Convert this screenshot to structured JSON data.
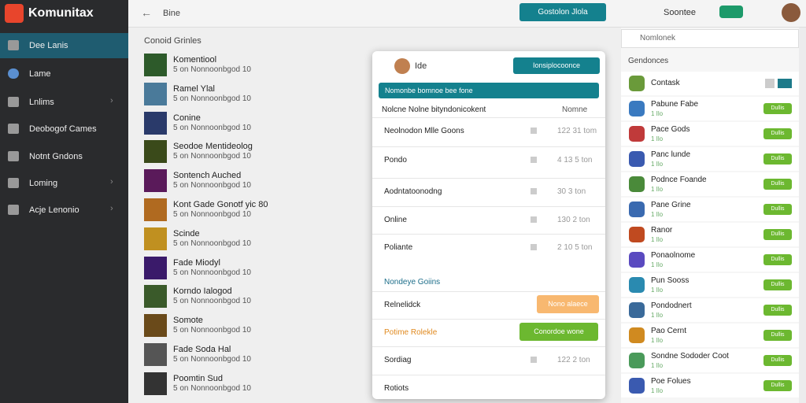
{
  "sidebar": {
    "logo": "Komunitax",
    "nav": [
      "Dee Lanis",
      "Lame",
      "Lnlims",
      "Deobogof Cames",
      "Notnt Gndons",
      "Loming",
      "Acje Lenonio"
    ]
  },
  "topbar": {
    "title": "Bine",
    "button": "Gostolon Jlola",
    "link": "Soontee"
  },
  "main": {
    "heading": "Conoid Grinles",
    "items": [
      {
        "title": "Komentiool",
        "subtitle": "5 on Nonnoonbgod 10"
      },
      {
        "title": "Ramel Ylal",
        "subtitle": "5 on Nonnoonbgod 10"
      },
      {
        "title": "Conine",
        "subtitle": "5 on Nonnoonbgod 10"
      },
      {
        "title": "Seodoe Mentideolog",
        "subtitle": "5 on Nonnoonbgod 10"
      },
      {
        "title": "Sontench Auched",
        "subtitle": "5 on Nonnoonbgod 10"
      },
      {
        "title": "Kont Gade Gonotf yic 80",
        "subtitle": "5 on Nonnoonbgod 10"
      },
      {
        "title": "Scinde",
        "subtitle": "5 on Nonnoonbgod 10"
      },
      {
        "title": "Fade Miodyl",
        "subtitle": "5 on Nonnoonbgod 10"
      },
      {
        "title": "Korndo Ialogod",
        "subtitle": "5 on Nonnoonbgod 10"
      },
      {
        "title": "Somote",
        "subtitle": "5 on Nonnoonbgod 10"
      },
      {
        "title": "Fade Soda Hal",
        "subtitle": "5 on Nonnoonbgod 10"
      },
      {
        "title": "Poomtin Sud",
        "subtitle": "5 on Nonnoonbgod 10"
      }
    ]
  },
  "modal": {
    "title": "Ide",
    "button": "Ionsiplocoonce",
    "banner": "Nomonbe bomnoe bee fone",
    "subheader": "Nolcne Nolne bityndonicokent",
    "option": "Nomne",
    "rows": [
      {
        "label": "Neolnodon Mlle Goons",
        "value": "122 31 tom"
      },
      {
        "label": "Pondo",
        "value": "4 13 5 ton"
      },
      {
        "label": "Aodntatoonodng",
        "value": "30 3 ton"
      },
      {
        "label": "Online",
        "value": "130 2 ton"
      },
      {
        "label": "Poliante",
        "value": "2 10 5 ton"
      }
    ],
    "section": "Nondeye Goiins",
    "actions": [
      {
        "label": "Relnelidck",
        "button": "Nono alaece"
      },
      {
        "label": "Potime Rolekle",
        "button": "Conordoe wone"
      }
    ],
    "rows2": [
      {
        "label": "Sordiag",
        "value": "122 2 ton"
      },
      {
        "label": "Rotiots"
      }
    ]
  },
  "right": {
    "search": "Nomlonek",
    "heading": "Gendonces",
    "button": "Dullis",
    "items": [
      {
        "name": "Contask"
      },
      {
        "name": "Pabune Fabe",
        "meta": "1 Ilo"
      },
      {
        "name": "Pace Gods",
        "meta": "1 Ilo"
      },
      {
        "name": "Panc lunde",
        "meta": "1 Ilo"
      },
      {
        "name": "Podnce Foande",
        "meta": "1 Ilo"
      },
      {
        "name": "Pane Grine",
        "meta": "1 Ilo"
      },
      {
        "name": "Ranor",
        "meta": "1 Ilo"
      },
      {
        "name": "Ponaolnome",
        "meta": "1 Ilo"
      },
      {
        "name": "Pun Sooss",
        "meta": "1 Ilo"
      },
      {
        "name": "Pondodnert",
        "meta": "1 Ilo"
      },
      {
        "name": "Pao Cernt",
        "meta": "1 Ilo"
      },
      {
        "name": "Sondne Sododer Coot",
        "meta": "1 Ilo"
      },
      {
        "name": "Poe Folues",
        "meta": "1 Ilo"
      }
    ]
  }
}
